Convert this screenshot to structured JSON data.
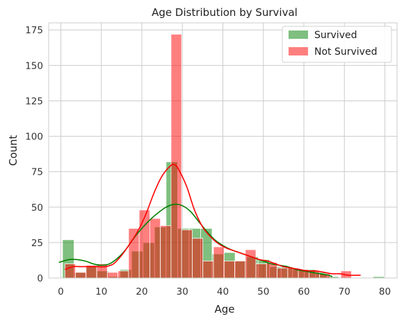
{
  "chart_data": {
    "type": "bar",
    "title": "Age Distribution by Survival",
    "xlabel": "Age",
    "ylabel": "Count",
    "xlim": [
      -3,
      83
    ],
    "ylim": [
      0,
      180
    ],
    "xticks": [
      0,
      10,
      20,
      30,
      40,
      50,
      60,
      70,
      80
    ],
    "yticks": [
      0,
      25,
      50,
      75,
      100,
      125,
      150,
      175
    ],
    "grid": true,
    "legend_position": "top-right",
    "series": [
      {
        "name": "Survived",
        "color": "#008000",
        "bin_width": 2.84,
        "bins": [
          {
            "x": 0.42,
            "count": 27
          },
          {
            "x": 3.26,
            "count": 4
          },
          {
            "x": 6.1,
            "count": 8
          },
          {
            "x": 8.94,
            "count": 5
          },
          {
            "x": 11.78,
            "count": 1
          },
          {
            "x": 14.62,
            "count": 6
          },
          {
            "x": 17.46,
            "count": 19
          },
          {
            "x": 20.3,
            "count": 25
          },
          {
            "x": 23.14,
            "count": 36
          },
          {
            "x": 25.98,
            "count": 82
          },
          {
            "x": 28.82,
            "count": 35
          },
          {
            "x": 31.66,
            "count": 35
          },
          {
            "x": 34.5,
            "count": 35
          },
          {
            "x": 37.34,
            "count": 17
          },
          {
            "x": 40.18,
            "count": 18
          },
          {
            "x": 43.02,
            "count": 12
          },
          {
            "x": 45.86,
            "count": 15
          },
          {
            "x": 48.7,
            "count": 13
          },
          {
            "x": 51.54,
            "count": 8
          },
          {
            "x": 54.38,
            "count": 8
          },
          {
            "x": 57.22,
            "count": 6
          },
          {
            "x": 60.06,
            "count": 6
          },
          {
            "x": 62.9,
            "count": 4
          },
          {
            "x": 65.74,
            "count": 1
          },
          {
            "x": 68.58,
            "count": 0
          },
          {
            "x": 71.42,
            "count": 0
          },
          {
            "x": 74.26,
            "count": 0
          },
          {
            "x": 77.1,
            "count": 1
          }
        ],
        "kde": [
          [
            -0.5,
            11
          ],
          [
            2,
            13
          ],
          [
            4,
            13
          ],
          [
            6,
            12
          ],
          [
            8,
            10
          ],
          [
            10,
            9
          ],
          [
            12,
            10
          ],
          [
            14,
            14
          ],
          [
            16,
            20
          ],
          [
            18,
            28
          ],
          [
            20,
            35
          ],
          [
            22,
            41
          ],
          [
            24,
            46
          ],
          [
            26,
            50
          ],
          [
            28,
            52
          ],
          [
            30,
            51
          ],
          [
            32,
            47
          ],
          [
            34,
            40
          ],
          [
            36,
            33
          ],
          [
            38,
            27
          ],
          [
            40,
            23
          ],
          [
            42,
            20
          ],
          [
            44,
            18
          ],
          [
            46,
            16
          ],
          [
            48,
            14
          ],
          [
            50,
            12
          ],
          [
            52,
            10
          ],
          [
            54,
            9
          ],
          [
            56,
            8
          ],
          [
            58,
            6
          ],
          [
            60,
            5
          ],
          [
            62,
            4
          ],
          [
            64,
            3
          ],
          [
            66,
            2
          ],
          [
            67,
            1
          ]
        ]
      },
      {
        "name": "Not Survived",
        "color": "#ff0000",
        "bin_width": 2.62,
        "bins": [
          {
            "x": 1.0,
            "count": 10
          },
          {
            "x": 3.62,
            "count": 4
          },
          {
            "x": 6.24,
            "count": 9
          },
          {
            "x": 8.86,
            "count": 10
          },
          {
            "x": 11.48,
            "count": 4
          },
          {
            "x": 14.1,
            "count": 5
          },
          {
            "x": 16.72,
            "count": 35
          },
          {
            "x": 19.34,
            "count": 48
          },
          {
            "x": 21.96,
            "count": 42
          },
          {
            "x": 24.58,
            "count": 37
          },
          {
            "x": 27.2,
            "count": 172
          },
          {
            "x": 29.82,
            "count": 34
          },
          {
            "x": 32.44,
            "count": 28
          },
          {
            "x": 35.06,
            "count": 12
          },
          {
            "x": 37.68,
            "count": 22
          },
          {
            "x": 40.3,
            "count": 12
          },
          {
            "x": 42.92,
            "count": 12
          },
          {
            "x": 45.54,
            "count": 20
          },
          {
            "x": 48.16,
            "count": 10
          },
          {
            "x": 50.78,
            "count": 11
          },
          {
            "x": 53.4,
            "count": 7
          },
          {
            "x": 56.02,
            "count": 7
          },
          {
            "x": 58.64,
            "count": 6
          },
          {
            "x": 61.26,
            "count": 5
          },
          {
            "x": 63.88,
            "count": 3
          },
          {
            "x": 66.5,
            "count": 0
          },
          {
            "x": 69.12,
            "count": 5
          },
          {
            "x": 71.74,
            "count": 0
          }
        ],
        "kde": [
          [
            1,
            6
          ],
          [
            3,
            8
          ],
          [
            5,
            8
          ],
          [
            7,
            8
          ],
          [
            9,
            8
          ],
          [
            11,
            8
          ],
          [
            13,
            10
          ],
          [
            15,
            16
          ],
          [
            17,
            24
          ],
          [
            19,
            33
          ],
          [
            21,
            45
          ],
          [
            23,
            60
          ],
          [
            25,
            72
          ],
          [
            27,
            79
          ],
          [
            28,
            80
          ],
          [
            29,
            77
          ],
          [
            31,
            65
          ],
          [
            33,
            48
          ],
          [
            35,
            36
          ],
          [
            37,
            29
          ],
          [
            39,
            24
          ],
          [
            41,
            21
          ],
          [
            43,
            19
          ],
          [
            45,
            17
          ],
          [
            47,
            15
          ],
          [
            49,
            13
          ],
          [
            51,
            12
          ],
          [
            53,
            10
          ],
          [
            55,
            8
          ],
          [
            57,
            7
          ],
          [
            59,
            6
          ],
          [
            61,
            5
          ],
          [
            63,
            5
          ],
          [
            65,
            4
          ],
          [
            67,
            3
          ],
          [
            69,
            3
          ],
          [
            71,
            2
          ],
          [
            74,
            2
          ]
        ]
      }
    ]
  }
}
